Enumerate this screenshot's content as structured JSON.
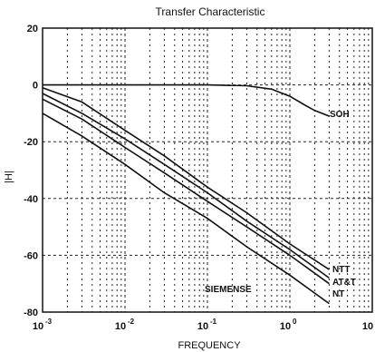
{
  "chart_data": {
    "type": "line",
    "title": "Transfer Characteristic",
    "xlabel": "FREQUENCY",
    "ylabel": "|H|",
    "xscale": "log",
    "xlim": [
      0.001,
      10
    ],
    "ylim": [
      -80,
      20
    ],
    "x_ticks": [
      "10",
      "10",
      "10",
      "10",
      "10"
    ],
    "x_tick_exponents": [
      "-3",
      "-2",
      "-1",
      "0",
      "1"
    ],
    "y_ticks": [
      "20",
      "0",
      "-20",
      "-40",
      "-60",
      "-80"
    ],
    "grid": true,
    "series": [
      {
        "name": "SOH",
        "x": [
          0.001,
          0.01,
          0.1,
          0.3,
          0.6,
          1.0,
          1.5,
          2.0,
          3.0
        ],
        "y": [
          0,
          0,
          0,
          -0.3,
          -1.5,
          -4,
          -7,
          -9,
          -11
        ]
      },
      {
        "name": "NTT",
        "x": [
          0.001,
          0.003,
          0.01,
          0.03,
          0.1,
          0.3,
          1.0,
          3.0
        ],
        "y": [
          -1,
          -6,
          -16,
          -25,
          -36,
          -45,
          -56,
          -65
        ]
      },
      {
        "name": "AT&T",
        "x": [
          0.001,
          0.003,
          0.01,
          0.03,
          0.1,
          0.3,
          1.0,
          3.0
        ],
        "y": [
          -3,
          -10,
          -19,
          -28,
          -38,
          -48,
          -58,
          -68
        ]
      },
      {
        "name": "NT",
        "x": [
          0.001,
          0.003,
          0.01,
          0.03,
          0.1,
          0.3,
          1.0,
          3.0
        ],
        "y": [
          -5,
          -12,
          -22,
          -31,
          -41,
          -50,
          -60,
          -70
        ]
      },
      {
        "name": "SIEMENSE",
        "x": [
          0.001,
          0.003,
          0.01,
          0.03,
          0.1,
          0.3,
          1.0,
          3.0
        ],
        "y": [
          -10,
          -18,
          -28,
          -38,
          -47,
          -57,
          -67,
          -77
        ]
      }
    ]
  }
}
